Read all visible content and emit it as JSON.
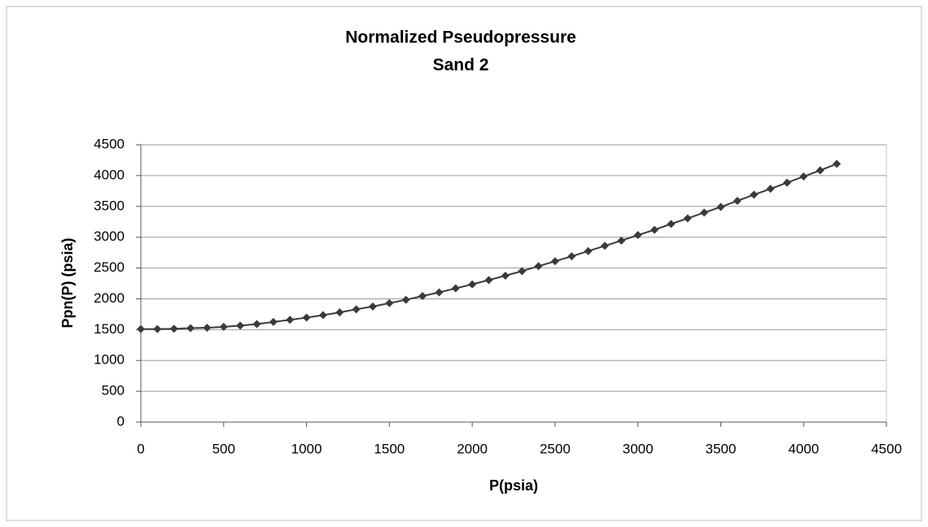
{
  "chart_data": {
    "type": "line",
    "title": "Normalized Pseudopressure",
    "subtitle": "Sand 2",
    "xlabel": "P(psia)",
    "ylabel": "Ppn(P) (psia)",
    "x": [
      0,
      100,
      200,
      300,
      400,
      500,
      600,
      700,
      800,
      900,
      1000,
      1100,
      1200,
      1300,
      1400,
      1500,
      1600,
      1700,
      1800,
      1900,
      2000,
      2100,
      2200,
      2300,
      2400,
      2500,
      2600,
      2700,
      2800,
      2900,
      3000,
      3100,
      3200,
      3300,
      3400,
      3500,
      3600,
      3700,
      3800,
      3900,
      4000,
      4100,
      4200
    ],
    "values": [
      1510,
      1510,
      1515,
      1525,
      1530,
      1545,
      1565,
      1590,
      1625,
      1660,
      1695,
      1735,
      1780,
      1830,
      1875,
      1930,
      1985,
      2045,
      2105,
      2170,
      2235,
      2305,
      2375,
      2450,
      2530,
      2610,
      2690,
      2775,
      2860,
      2945,
      3035,
      3120,
      3215,
      3305,
      3400,
      3490,
      3590,
      3690,
      3785,
      3885,
      3985,
      4085,
      4190
    ],
    "color": "#3a3a3a",
    "marker": "diamond",
    "xlim": [
      0,
      4500
    ],
    "xticks": [
      0,
      500,
      1000,
      1500,
      2000,
      2500,
      3000,
      3500,
      4000,
      4500
    ],
    "ylim": [
      0,
      4500
    ],
    "yticks": [
      0,
      500,
      1000,
      1500,
      2000,
      2500,
      3000,
      3500,
      4000,
      4500
    ],
    "grid": true
  }
}
